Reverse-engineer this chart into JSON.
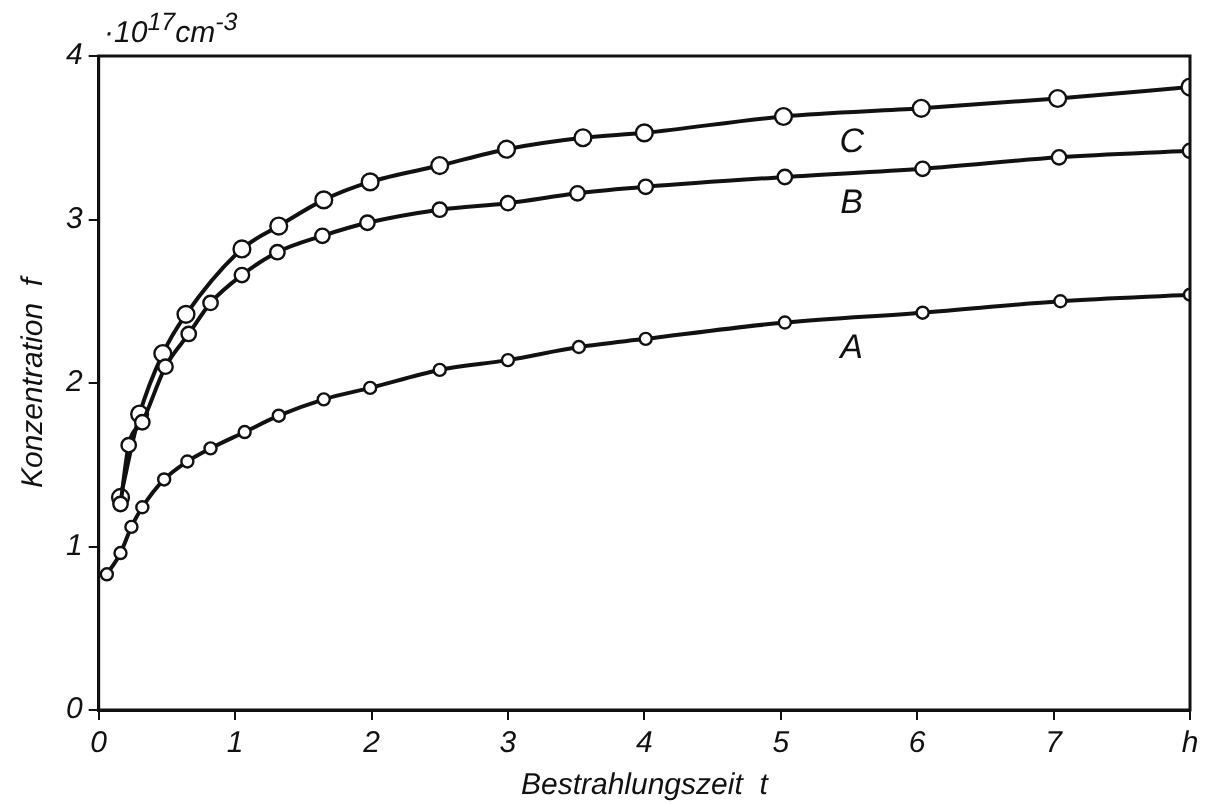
{
  "chart_data": {
    "type": "line",
    "xlabel": "Bestrahlungszeit  t",
    "ylabel": "Konzentration  f",
    "annotations": [
      "·10$^{17}$cm$^{-3}$"
    ],
    "xlim": [
      0,
      8
    ],
    "xticks": [
      0,
      1,
      2,
      3,
      4,
      5,
      6,
      7,
      {
        "value": 8,
        "label": "h"
      }
    ],
    "ylim": [
      0,
      4
    ],
    "yticks": [
      0,
      1,
      2,
      3,
      4
    ],
    "grid": false,
    "legend": false,
    "marker": "circle",
    "line_style": "solid",
    "series": [
      {
        "name": "A",
        "color": "#111111",
        "x": [
          0.06,
          0.16,
          0.24,
          0.32,
          0.48,
          0.65,
          0.82,
          1.07,
          1.32,
          1.65,
          1.99,
          2.5,
          3.0,
          3.52,
          4.01,
          5.03,
          6.04,
          7.05,
          8.0
        ],
        "values": [
          0.83,
          0.96,
          1.12,
          1.24,
          1.41,
          1.52,
          1.6,
          1.7,
          1.8,
          1.9,
          1.97,
          2.08,
          2.14,
          2.22,
          2.27,
          2.37,
          2.43,
          2.5,
          2.54
        ]
      },
      {
        "name": "B",
        "color": "#111111",
        "x": [
          0.16,
          0.22,
          0.32,
          0.49,
          0.66,
          0.82,
          1.05,
          1.31,
          1.64,
          1.97,
          2.5,
          3.0,
          3.51,
          4.01,
          5.03,
          6.04,
          7.04,
          8.0
        ],
        "values": [
          1.26,
          1.62,
          1.76,
          2.1,
          2.3,
          2.49,
          2.66,
          2.8,
          2.9,
          2.98,
          3.06,
          3.1,
          3.16,
          3.2,
          3.26,
          3.31,
          3.38,
          3.42
        ]
      },
      {
        "name": "C",
        "color": "#111111",
        "x": [
          0.16,
          0.3,
          0.47,
          0.64,
          1.05,
          1.32,
          1.65,
          1.99,
          2.5,
          2.99,
          3.55,
          4.0,
          5.02,
          6.03,
          7.03,
          8.0
        ],
        "values": [
          1.3,
          1.81,
          2.18,
          2.42,
          2.82,
          2.96,
          3.12,
          3.23,
          3.33,
          3.43,
          3.5,
          3.53,
          3.63,
          3.68,
          3.74,
          3.81
        ]
      }
    ]
  }
}
